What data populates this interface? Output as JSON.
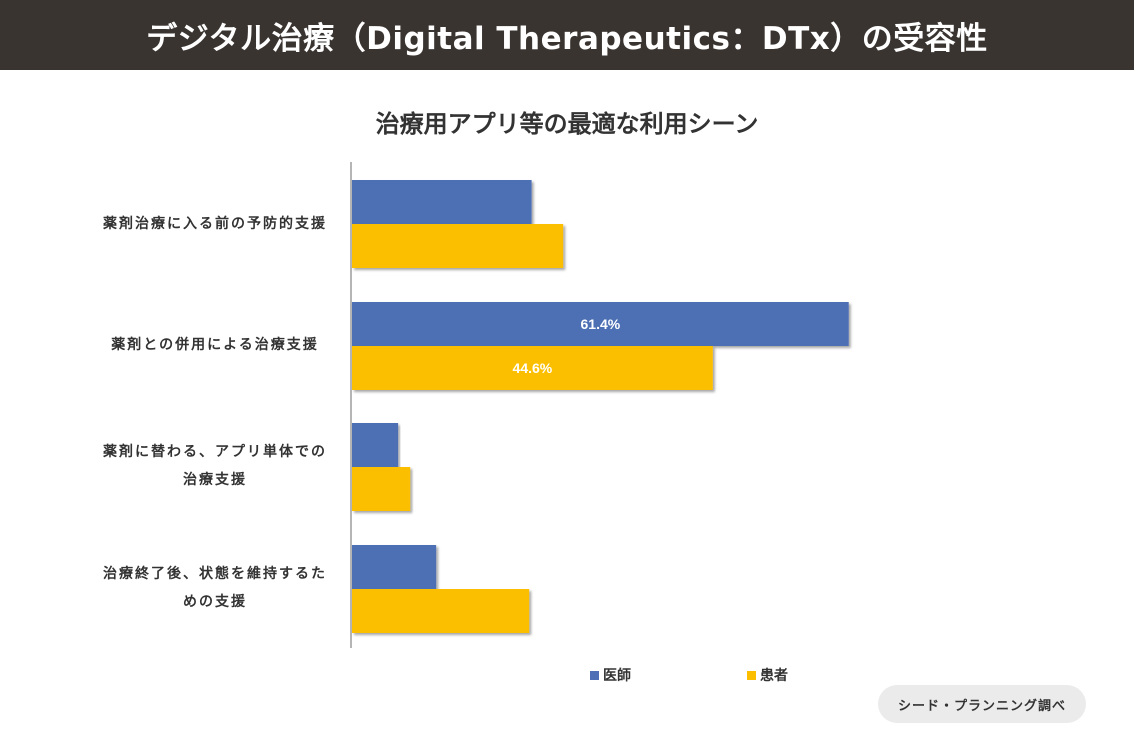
{
  "header": {
    "title": "デジタル治療（Digital Therapeutics：DTx）の受容性"
  },
  "colors": {
    "doctor": "#4e6fb5",
    "patient": "#fbbf00",
    "header_bg": "#3a3431"
  },
  "chart_data": {
    "type": "bar",
    "orientation": "horizontal",
    "title": "治療用アプリ等の最適な利用シーン",
    "categories": [
      [
        "薬剤治療に入る前の予防的支援"
      ],
      [
        "薬剤との併用による治療支援"
      ],
      [
        "薬剤に替わる、アプリ単体での",
        "治療支援"
      ],
      [
        "治療終了後、状態を維持するた",
        "めの支援"
      ]
    ],
    "series": [
      {
        "name": "医師",
        "values": [
          22.2,
          61.4,
          5.7,
          10.4
        ],
        "data_labels": [
          "",
          "61.4%",
          "",
          ""
        ]
      },
      {
        "name": "患者",
        "values": [
          26.1,
          44.6,
          7.2,
          21.9
        ],
        "data_labels": [
          "",
          "44.6%",
          "",
          ""
        ]
      }
    ],
    "xlim": [
      0,
      70
    ],
    "xlabel": "",
    "ylabel": "",
    "grid": false,
    "legend": "bottom"
  },
  "source": "シード・プランニング調べ"
}
